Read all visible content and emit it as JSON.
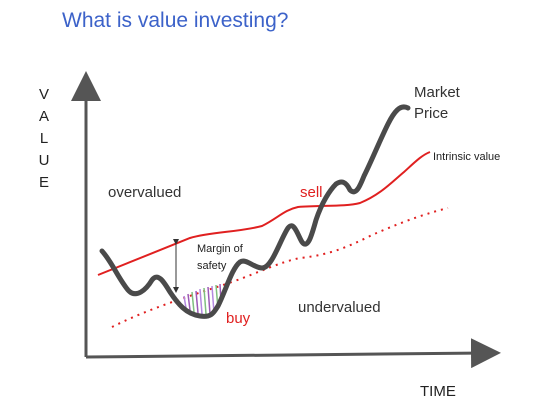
{
  "title": "What is value investing?",
  "axes": {
    "y_label": "VALUE",
    "x_label": "TIME"
  },
  "regions": {
    "overvalued": "overvalued",
    "undervalued": "undervalued"
  },
  "curves": {
    "market_price": [
      "Market",
      "Price"
    ],
    "intrinsic_value": "Intrinsic value"
  },
  "annotations": {
    "sell": "sell",
    "buy": "buy",
    "margin_of_safety": [
      "Margin of",
      "safety"
    ]
  },
  "colors": {
    "title": "#3c62c9",
    "market_price": "#4a4a4a",
    "intrinsic_value": "#e02020",
    "margin_line": "#e02020",
    "buy_sell": "#e02020",
    "axis": "#555555",
    "text": "#333333",
    "hatch": [
      "#9b59b6",
      "#b388e0",
      "#7fbf7f"
    ]
  }
}
